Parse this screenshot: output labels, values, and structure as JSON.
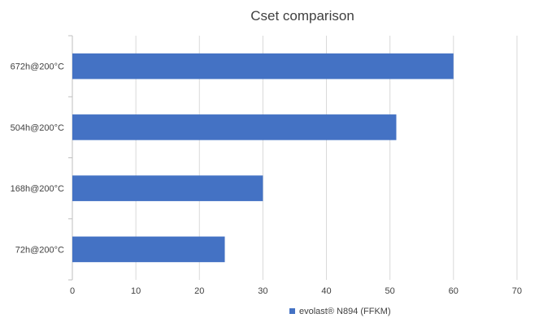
{
  "chart_data": {
    "type": "bar",
    "orientation": "horizontal",
    "title": "Cset comparison",
    "categories": [
      "672h@200°C",
      "504h@200°C",
      "168h@200°C",
      "72h@200°C"
    ],
    "series": [
      {
        "name": "evolast® N894 (FFKM)",
        "values": [
          60,
          51,
          30,
          24
        ],
        "color": "#4472c4"
      }
    ],
    "x_ticks": [
      "0",
      "10",
      "20",
      "30",
      "40",
      "50",
      "60",
      "70"
    ],
    "xlim": [
      0,
      75
    ],
    "grid": "vertical",
    "legend_position": "bottom"
  }
}
